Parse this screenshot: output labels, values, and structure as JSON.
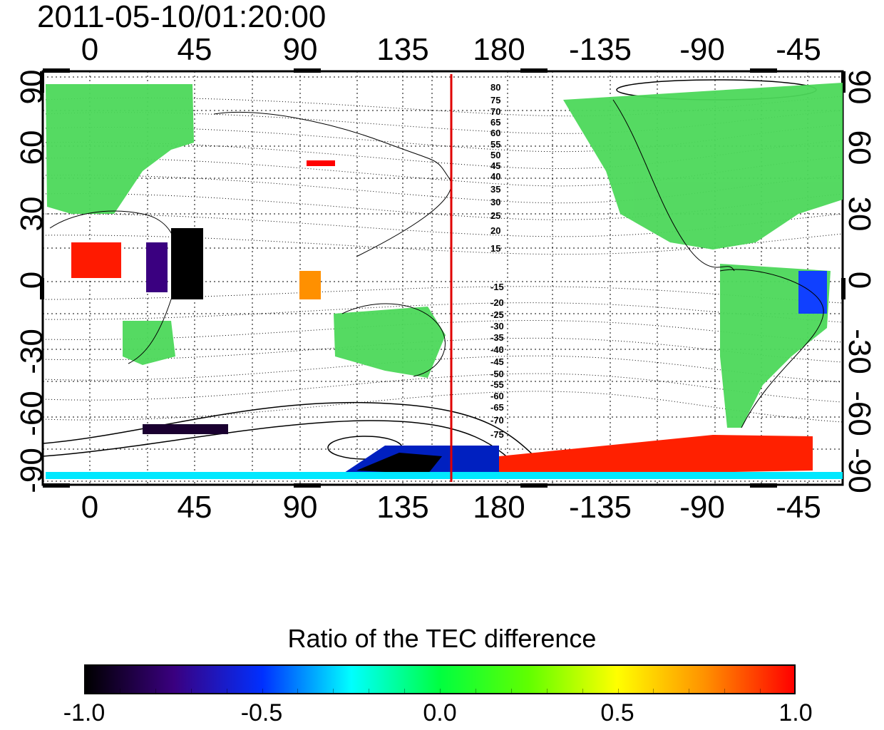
{
  "title": "2011-05-10/01:20:00",
  "x_ticks": [
    "0",
    "45",
    "90",
    "135",
    "180",
    "-135",
    "-90",
    "-45"
  ],
  "y_ticks": [
    "90",
    "60",
    "30",
    "0",
    "-30",
    "-60",
    "-90"
  ],
  "contour_labels": [
    "80",
    "75",
    "70",
    "65",
    "60",
    "55",
    "50",
    "45",
    "40",
    "35",
    "30",
    "25",
    "20",
    "15",
    "-15",
    "-20",
    "-25",
    "-30",
    "-35",
    "-40",
    "-45",
    "-50",
    "-55",
    "-60",
    "-65",
    "-70",
    "-75"
  ],
  "colorbar": {
    "title": "Ratio of the TEC difference",
    "ticks": [
      "-1.0",
      "-0.5",
      "0.0",
      "0.5",
      "1.0"
    ],
    "colors": [
      "#000000",
      "#3a0080",
      "#0030ff",
      "#00ffff",
      "#00ff40",
      "#60ff00",
      "#ffff00",
      "#ff9000",
      "#ff0000"
    ]
  },
  "marker_line": {
    "color": "#e00000",
    "longitude": 160
  },
  "colors": {
    "land_green": "#4cd85a",
    "ocean": "#ffffff",
    "grid": "#000000"
  }
}
